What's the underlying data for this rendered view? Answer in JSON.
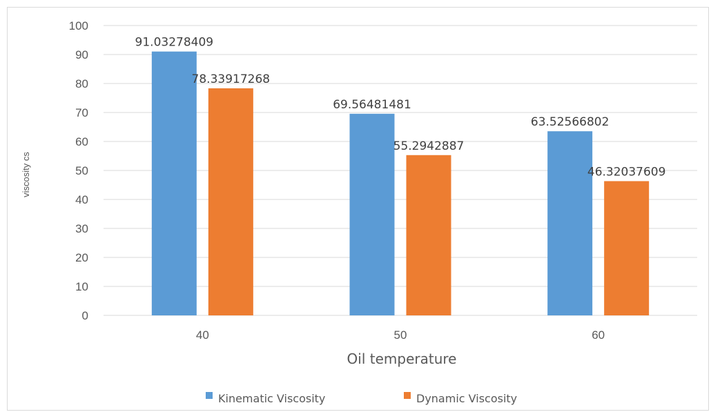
{
  "chart_data": {
    "type": "bar",
    "categories": [
      "40",
      "50",
      "60"
    ],
    "series": [
      {
        "name": "Kinematic Viscosity",
        "color": "#5b9bd5",
        "values": [
          91.03278409,
          69.56481481,
          63.52566802
        ],
        "labels": [
          "91.03278409",
          "69.56481481",
          "63.52566802"
        ]
      },
      {
        "name": "Dynamic Viscosity",
        "color": "#ed7d31",
        "values": [
          78.33917268,
          55.2942887,
          46.32037609
        ],
        "labels": [
          "78.33917268",
          "55.2942887",
          "46.32037609"
        ]
      }
    ],
    "xlabel": "Oil temperature",
    "ylabel": "viscosity cs",
    "ylim": [
      0,
      100
    ],
    "yticks": [
      0,
      10,
      20,
      30,
      40,
      50,
      60,
      70,
      80,
      90,
      100
    ],
    "grid": true,
    "legend_position": "bottom"
  }
}
